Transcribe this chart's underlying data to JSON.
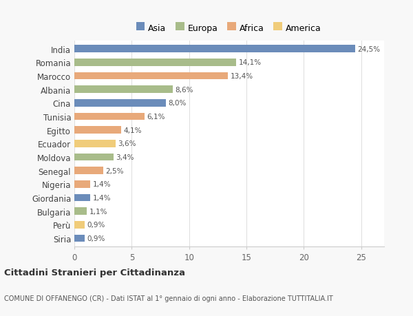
{
  "countries": [
    "India",
    "Romania",
    "Marocco",
    "Albania",
    "Cina",
    "Tunisia",
    "Egitto",
    "Ecuador",
    "Moldova",
    "Senegal",
    "Nigeria",
    "Giordania",
    "Bulgaria",
    "Perù",
    "Siria"
  ],
  "values": [
    24.5,
    14.1,
    13.4,
    8.6,
    8.0,
    6.1,
    4.1,
    3.6,
    3.4,
    2.5,
    1.4,
    1.4,
    1.1,
    0.9,
    0.9
  ],
  "labels": [
    "24,5%",
    "14,1%",
    "13,4%",
    "8,6%",
    "8,0%",
    "6,1%",
    "4,1%",
    "3,6%",
    "3,4%",
    "2,5%",
    "1,4%",
    "1,4%",
    "1,1%",
    "0,9%",
    "0,9%"
  ],
  "colors": [
    "#6b8cba",
    "#a8bc8a",
    "#e8a97a",
    "#a8bc8a",
    "#6b8cba",
    "#e8a97a",
    "#e8a97a",
    "#f0cc7a",
    "#a8bc8a",
    "#e8a97a",
    "#e8a97a",
    "#6b8cba",
    "#a8bc8a",
    "#f0cc7a",
    "#6b8cba"
  ],
  "legend_labels": [
    "Asia",
    "Europa",
    "Africa",
    "America"
  ],
  "legend_colors": [
    "#6b8cba",
    "#a8bc8a",
    "#e8a97a",
    "#f0cc7a"
  ],
  "title": "Cittadini Stranieri per Cittadinanza",
  "subtitle": "COMUNE DI OFFANENGO (CR) - Dati ISTAT al 1° gennaio di ogni anno - Elaborazione TUTTITALIA.IT",
  "xlim": [
    0,
    27
  ],
  "xticks": [
    0,
    5,
    10,
    15,
    20,
    25
  ],
  "background_color": "#f8f8f8",
  "plot_bg_color": "#ffffff",
  "bar_height": 0.55
}
